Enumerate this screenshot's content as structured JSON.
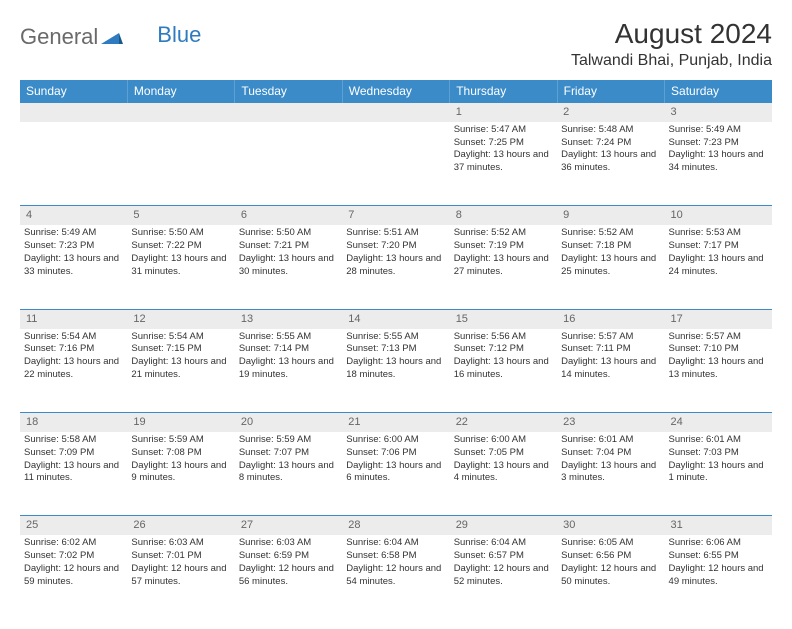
{
  "brand": {
    "part1": "General",
    "part2": "Blue"
  },
  "title": "August 2024",
  "location": "Talwandi Bhai, Punjab, India",
  "colors": {
    "header_bg": "#3b8bc9",
    "header_text": "#ffffff",
    "daynum_bg": "#ececec",
    "border": "#3b8bc9",
    "text": "#333333",
    "logo_blue": "#2e7bbf"
  },
  "weekdays": [
    "Sunday",
    "Monday",
    "Tuesday",
    "Wednesday",
    "Thursday",
    "Friday",
    "Saturday"
  ],
  "weeks": [
    {
      "nums": [
        "",
        "",
        "",
        "",
        "1",
        "2",
        "3"
      ],
      "cells": [
        {},
        {},
        {},
        {},
        {
          "sr": "Sunrise: 5:47 AM",
          "ss": "Sunset: 7:25 PM",
          "dl": "Daylight: 13 hours and 37 minutes."
        },
        {
          "sr": "Sunrise: 5:48 AM",
          "ss": "Sunset: 7:24 PM",
          "dl": "Daylight: 13 hours and 36 minutes."
        },
        {
          "sr": "Sunrise: 5:49 AM",
          "ss": "Sunset: 7:23 PM",
          "dl": "Daylight: 13 hours and 34 minutes."
        }
      ]
    },
    {
      "nums": [
        "4",
        "5",
        "6",
        "7",
        "8",
        "9",
        "10"
      ],
      "cells": [
        {
          "sr": "Sunrise: 5:49 AM",
          "ss": "Sunset: 7:23 PM",
          "dl": "Daylight: 13 hours and 33 minutes."
        },
        {
          "sr": "Sunrise: 5:50 AM",
          "ss": "Sunset: 7:22 PM",
          "dl": "Daylight: 13 hours and 31 minutes."
        },
        {
          "sr": "Sunrise: 5:50 AM",
          "ss": "Sunset: 7:21 PM",
          "dl": "Daylight: 13 hours and 30 minutes."
        },
        {
          "sr": "Sunrise: 5:51 AM",
          "ss": "Sunset: 7:20 PM",
          "dl": "Daylight: 13 hours and 28 minutes."
        },
        {
          "sr": "Sunrise: 5:52 AM",
          "ss": "Sunset: 7:19 PM",
          "dl": "Daylight: 13 hours and 27 minutes."
        },
        {
          "sr": "Sunrise: 5:52 AM",
          "ss": "Sunset: 7:18 PM",
          "dl": "Daylight: 13 hours and 25 minutes."
        },
        {
          "sr": "Sunrise: 5:53 AM",
          "ss": "Sunset: 7:17 PM",
          "dl": "Daylight: 13 hours and 24 minutes."
        }
      ]
    },
    {
      "nums": [
        "11",
        "12",
        "13",
        "14",
        "15",
        "16",
        "17"
      ],
      "cells": [
        {
          "sr": "Sunrise: 5:54 AM",
          "ss": "Sunset: 7:16 PM",
          "dl": "Daylight: 13 hours and 22 minutes."
        },
        {
          "sr": "Sunrise: 5:54 AM",
          "ss": "Sunset: 7:15 PM",
          "dl": "Daylight: 13 hours and 21 minutes."
        },
        {
          "sr": "Sunrise: 5:55 AM",
          "ss": "Sunset: 7:14 PM",
          "dl": "Daylight: 13 hours and 19 minutes."
        },
        {
          "sr": "Sunrise: 5:55 AM",
          "ss": "Sunset: 7:13 PM",
          "dl": "Daylight: 13 hours and 18 minutes."
        },
        {
          "sr": "Sunrise: 5:56 AM",
          "ss": "Sunset: 7:12 PM",
          "dl": "Daylight: 13 hours and 16 minutes."
        },
        {
          "sr": "Sunrise: 5:57 AM",
          "ss": "Sunset: 7:11 PM",
          "dl": "Daylight: 13 hours and 14 minutes."
        },
        {
          "sr": "Sunrise: 5:57 AM",
          "ss": "Sunset: 7:10 PM",
          "dl": "Daylight: 13 hours and 13 minutes."
        }
      ]
    },
    {
      "nums": [
        "18",
        "19",
        "20",
        "21",
        "22",
        "23",
        "24"
      ],
      "cells": [
        {
          "sr": "Sunrise: 5:58 AM",
          "ss": "Sunset: 7:09 PM",
          "dl": "Daylight: 13 hours and 11 minutes."
        },
        {
          "sr": "Sunrise: 5:59 AM",
          "ss": "Sunset: 7:08 PM",
          "dl": "Daylight: 13 hours and 9 minutes."
        },
        {
          "sr": "Sunrise: 5:59 AM",
          "ss": "Sunset: 7:07 PM",
          "dl": "Daylight: 13 hours and 8 minutes."
        },
        {
          "sr": "Sunrise: 6:00 AM",
          "ss": "Sunset: 7:06 PM",
          "dl": "Daylight: 13 hours and 6 minutes."
        },
        {
          "sr": "Sunrise: 6:00 AM",
          "ss": "Sunset: 7:05 PM",
          "dl": "Daylight: 13 hours and 4 minutes."
        },
        {
          "sr": "Sunrise: 6:01 AM",
          "ss": "Sunset: 7:04 PM",
          "dl": "Daylight: 13 hours and 3 minutes."
        },
        {
          "sr": "Sunrise: 6:01 AM",
          "ss": "Sunset: 7:03 PM",
          "dl": "Daylight: 13 hours and 1 minute."
        }
      ]
    },
    {
      "nums": [
        "25",
        "26",
        "27",
        "28",
        "29",
        "30",
        "31"
      ],
      "cells": [
        {
          "sr": "Sunrise: 6:02 AM",
          "ss": "Sunset: 7:02 PM",
          "dl": "Daylight: 12 hours and 59 minutes."
        },
        {
          "sr": "Sunrise: 6:03 AM",
          "ss": "Sunset: 7:01 PM",
          "dl": "Daylight: 12 hours and 57 minutes."
        },
        {
          "sr": "Sunrise: 6:03 AM",
          "ss": "Sunset: 6:59 PM",
          "dl": "Daylight: 12 hours and 56 minutes."
        },
        {
          "sr": "Sunrise: 6:04 AM",
          "ss": "Sunset: 6:58 PM",
          "dl": "Daylight: 12 hours and 54 minutes."
        },
        {
          "sr": "Sunrise: 6:04 AM",
          "ss": "Sunset: 6:57 PM",
          "dl": "Daylight: 12 hours and 52 minutes."
        },
        {
          "sr": "Sunrise: 6:05 AM",
          "ss": "Sunset: 6:56 PM",
          "dl": "Daylight: 12 hours and 50 minutes."
        },
        {
          "sr": "Sunrise: 6:06 AM",
          "ss": "Sunset: 6:55 PM",
          "dl": "Daylight: 12 hours and 49 minutes."
        }
      ]
    }
  ]
}
